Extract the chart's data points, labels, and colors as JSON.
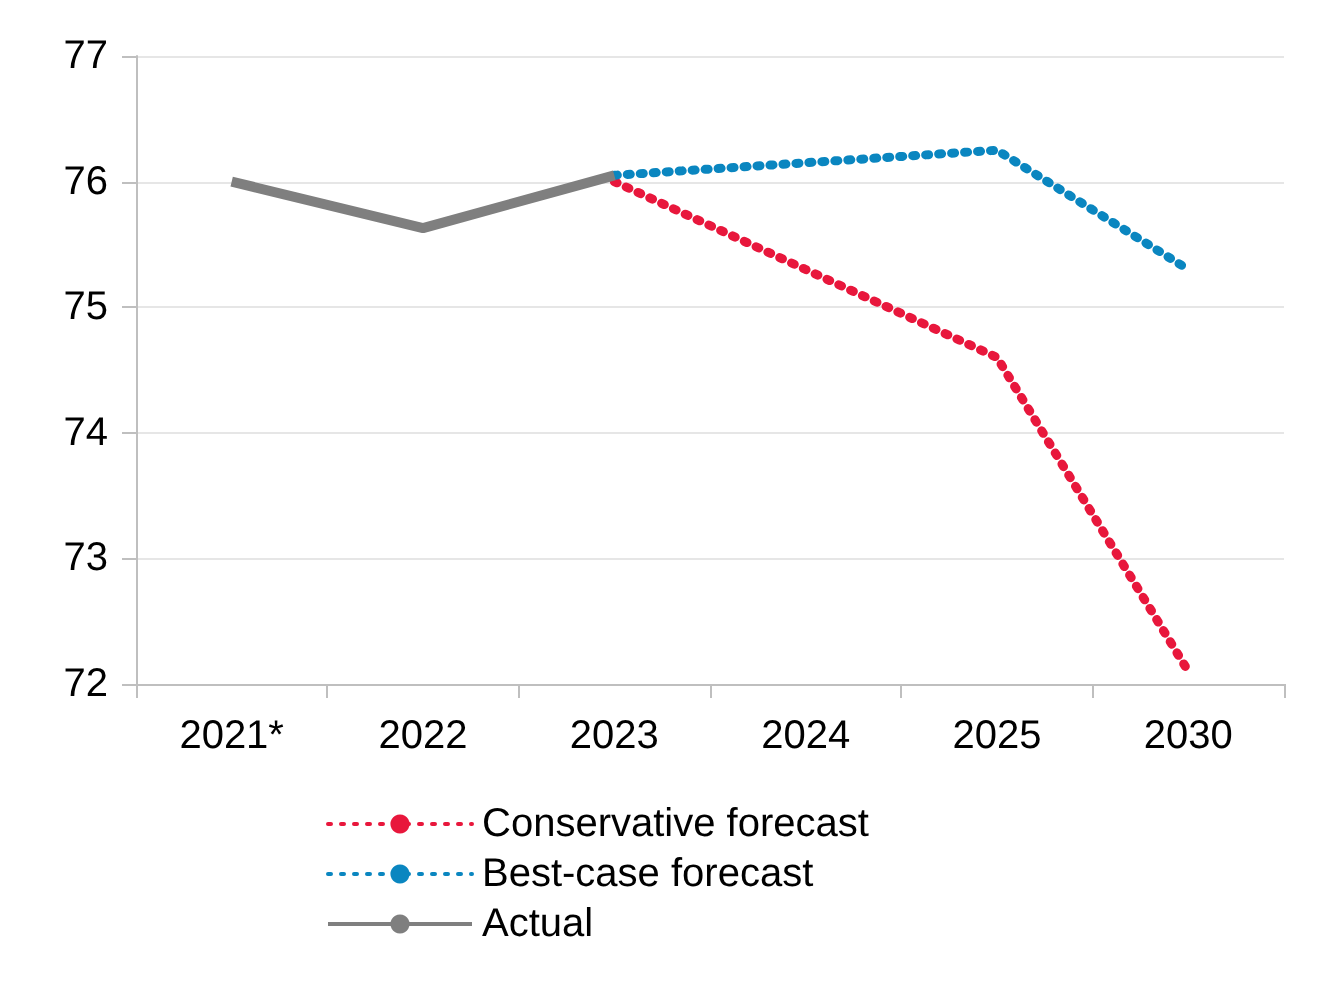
{
  "chart_data": {
    "type": "line",
    "categories": [
      "2021*",
      "2022",
      "2023",
      "2024",
      "2025",
      "2030"
    ],
    "ylim": [
      72,
      77
    ],
    "yticks": [
      72,
      73,
      74,
      75,
      76,
      77
    ],
    "grid": "y",
    "legend": "bottom",
    "marker": "none",
    "series": [
      {
        "name": "Conservative forecast",
        "color": "#e8173c",
        "line_style": "dotted",
        "values": [
          null,
          null,
          76.0,
          75.3,
          74.6,
          72.1
        ]
      },
      {
        "name": "Best-case forecast",
        "color": "#0a86c0",
        "line_style": "dotted",
        "values": [
          null,
          null,
          76.05,
          76.15,
          76.25,
          75.3
        ]
      },
      {
        "name": "Actual",
        "color": "#7f7f7f",
        "line_style": "solid",
        "values": [
          76.0,
          75.63,
          76.05,
          null,
          null,
          null
        ]
      }
    ]
  }
}
